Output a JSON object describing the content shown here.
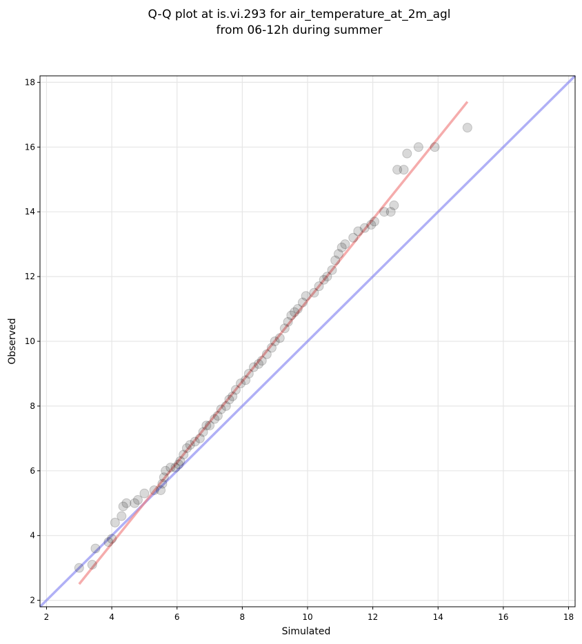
{
  "chart_data": {
    "type": "scatter",
    "title": "Q-Q plot at is.vi.293 for air_temperature_at_2m_agl",
    "subtitle": "from 06-12h during summer",
    "xlabel": "Simulated",
    "ylabel": "Observed",
    "xlim": [
      1.8,
      18.2
    ],
    "ylim": [
      1.8,
      18.2
    ],
    "xticks": [
      "2",
      "4",
      "6",
      "8",
      "10",
      "12",
      "14",
      "16",
      "18"
    ],
    "yticks": [
      "2",
      "4",
      "6",
      "8",
      "10",
      "12",
      "14",
      "16",
      "18"
    ],
    "grid": true,
    "legend": "none",
    "colors": {
      "points": "#000000",
      "fit_line": "#f08080",
      "identity_line": "#7b7bf0",
      "grid": "#e6e6e6"
    },
    "fit_line": [
      [
        3.0,
        2.5
      ],
      [
        14.9,
        17.4
      ]
    ],
    "identity_line": [
      [
        1.8,
        1.8
      ],
      [
        18.2,
        18.2
      ]
    ],
    "points": [
      [
        3.0,
        3.0
      ],
      [
        3.4,
        3.1
      ],
      [
        3.5,
        3.6
      ],
      [
        3.9,
        3.8
      ],
      [
        4.0,
        3.9
      ],
      [
        4.1,
        4.4
      ],
      [
        4.3,
        4.6
      ],
      [
        4.35,
        4.9
      ],
      [
        4.45,
        5.0
      ],
      [
        4.7,
        5.0
      ],
      [
        4.8,
        5.1
      ],
      [
        5.0,
        5.3
      ],
      [
        5.3,
        5.4
      ],
      [
        5.5,
        5.4
      ],
      [
        5.55,
        5.6
      ],
      [
        5.6,
        5.8
      ],
      [
        5.65,
        6.0
      ],
      [
        5.8,
        6.1
      ],
      [
        5.95,
        6.1
      ],
      [
        6.05,
        6.2
      ],
      [
        6.1,
        6.3
      ],
      [
        6.2,
        6.5
      ],
      [
        6.3,
        6.7
      ],
      [
        6.4,
        6.8
      ],
      [
        6.55,
        6.9
      ],
      [
        6.7,
        7.0
      ],
      [
        6.8,
        7.2
      ],
      [
        6.9,
        7.4
      ],
      [
        7.0,
        7.4
      ],
      [
        7.15,
        7.6
      ],
      [
        7.25,
        7.7
      ],
      [
        7.35,
        7.9
      ],
      [
        7.5,
        8.0
      ],
      [
        7.6,
        8.2
      ],
      [
        7.7,
        8.3
      ],
      [
        7.8,
        8.5
      ],
      [
        7.95,
        8.7
      ],
      [
        8.1,
        8.8
      ],
      [
        8.2,
        9.0
      ],
      [
        8.35,
        9.2
      ],
      [
        8.5,
        9.3
      ],
      [
        8.6,
        9.4
      ],
      [
        8.75,
        9.6
      ],
      [
        8.9,
        9.8
      ],
      [
        9.0,
        10.0
      ],
      [
        9.15,
        10.1
      ],
      [
        9.3,
        10.4
      ],
      [
        9.4,
        10.6
      ],
      [
        9.5,
        10.8
      ],
      [
        9.6,
        10.9
      ],
      [
        9.7,
        11.0
      ],
      [
        9.85,
        11.2
      ],
      [
        9.95,
        11.4
      ],
      [
        10.2,
        11.5
      ],
      [
        10.35,
        11.7
      ],
      [
        10.5,
        11.9
      ],
      [
        10.6,
        12.0
      ],
      [
        10.75,
        12.2
      ],
      [
        10.85,
        12.5
      ],
      [
        10.95,
        12.7
      ],
      [
        11.05,
        12.9
      ],
      [
        11.15,
        13.0
      ],
      [
        11.4,
        13.2
      ],
      [
        11.55,
        13.4
      ],
      [
        11.75,
        13.5
      ],
      [
        11.95,
        13.6
      ],
      [
        12.05,
        13.7
      ],
      [
        12.35,
        14.0
      ],
      [
        12.55,
        14.0
      ],
      [
        12.65,
        14.2
      ],
      [
        12.75,
        15.3
      ],
      [
        12.95,
        15.3
      ],
      [
        13.05,
        15.8
      ],
      [
        13.4,
        16.0
      ],
      [
        13.9,
        16.0
      ],
      [
        14.9,
        16.6
      ]
    ]
  }
}
